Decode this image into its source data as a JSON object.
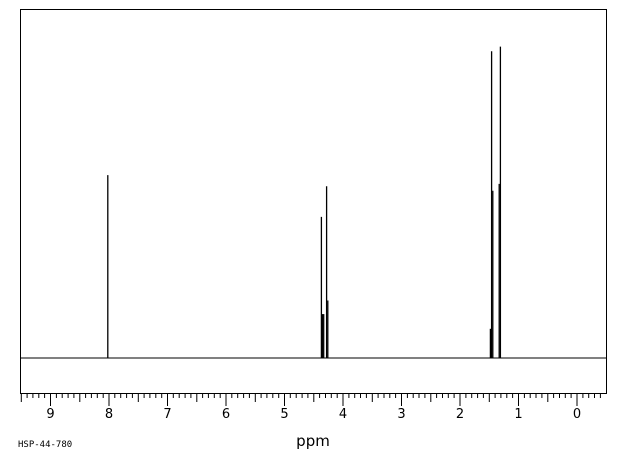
{
  "chart_data": {
    "type": "line",
    "title": "",
    "xlabel": "ppm",
    "ylabel": "",
    "x_reversed": true,
    "xlim": [
      9.55,
      -0.5
    ],
    "ylim": [
      0,
      100
    ],
    "grid": false,
    "x_ticks": [
      "9",
      "8",
      "7",
      "6",
      "5",
      "4",
      "3",
      "2",
      "1",
      "0"
    ],
    "x_tick_values": [
      9,
      8,
      7,
      6,
      5,
      4,
      3,
      2,
      1,
      0
    ],
    "series": [
      {
        "peaks": [
          {
            "ppm": 8.02,
            "height": 53.8
          },
          {
            "ppm": 4.37,
            "height": 41.5
          },
          {
            "ppm": 4.35,
            "height": 12.9
          },
          {
            "ppm": 4.33,
            "height": 12.9
          },
          {
            "ppm": 4.28,
            "height": 50.5
          },
          {
            "ppm": 4.26,
            "height": 16.9
          },
          {
            "ppm": 1.48,
            "height": 8.6
          },
          {
            "ppm": 1.46,
            "height": 90.2
          },
          {
            "ppm": 1.44,
            "height": 49.2
          },
          {
            "ppm": 1.33,
            "height": 51.2
          },
          {
            "ppm": 1.31,
            "height": 91.6
          }
        ]
      }
    ],
    "annotations": [
      "HSP-44-780"
    ]
  }
}
